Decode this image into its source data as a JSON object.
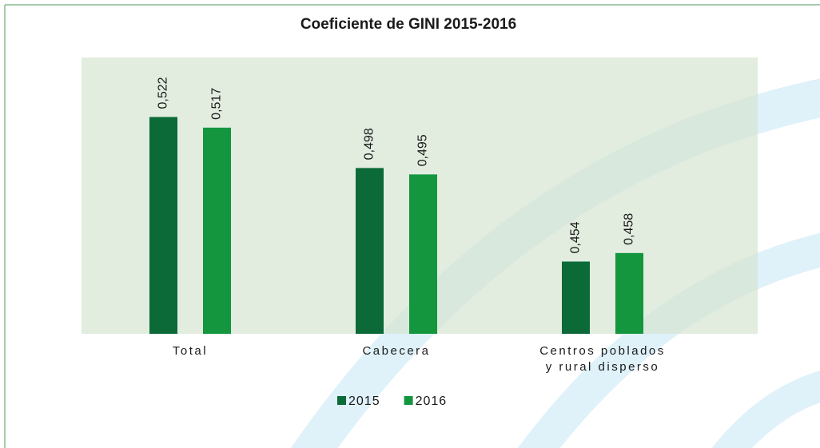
{
  "chart_data": {
    "type": "bar",
    "title": "Coeficiente de GINI 2015-2016",
    "categories": [
      "Total",
      "Cabecera",
      "Centros poblados\ny rural disperso"
    ],
    "series": [
      {
        "name": "2015",
        "color": "#0b6a38",
        "values": [
          0.522,
          0.498,
          0.454
        ],
        "value_labels": [
          "0,522",
          "0,498",
          "0,454"
        ]
      },
      {
        "name": "2016",
        "color": "#14963f",
        "values": [
          0.517,
          0.495,
          0.458
        ],
        "value_labels": [
          "0,517",
          "0,495",
          "0,458"
        ]
      }
    ],
    "ylim": [
      0.42,
      0.55
    ],
    "legend": "bottom"
  }
}
